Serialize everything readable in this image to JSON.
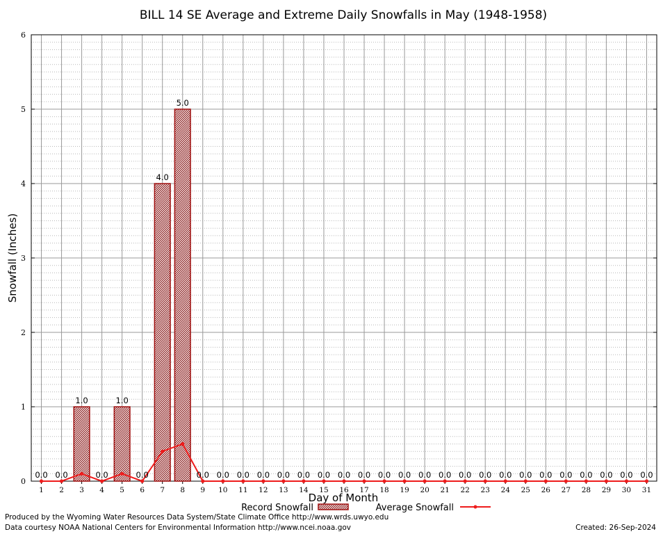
{
  "chart_data": {
    "type": "bar",
    "title": "BILL 14 SE Average and Extreme Daily Snowfalls in May (1948-1958)",
    "xlabel": "Day of Month",
    "ylabel": "Snowfall (Inches)",
    "ylim": [
      0,
      6
    ],
    "yticks": [
      "0",
      "1",
      "2",
      "3",
      "4",
      "5",
      "6"
    ],
    "categories": [
      "1",
      "2",
      "3",
      "4",
      "5",
      "6",
      "7",
      "8",
      "9",
      "10",
      "11",
      "12",
      "13",
      "14",
      "15",
      "16",
      "17",
      "18",
      "19",
      "20",
      "21",
      "22",
      "23",
      "24",
      "25",
      "26",
      "27",
      "28",
      "29",
      "30",
      "31"
    ],
    "series": [
      {
        "name": "Record Snowfall",
        "kind": "bar",
        "values": [
          0,
          0,
          1,
          0,
          1,
          0,
          4,
          5,
          0,
          0,
          0,
          0,
          0,
          0,
          0,
          0,
          0,
          0,
          0,
          0,
          0,
          0,
          0,
          0,
          0,
          0,
          0,
          0,
          0,
          0,
          0
        ],
        "labels": [
          "0.0",
          "0.0",
          "1.0",
          "0.0",
          "1.0",
          "0.0",
          "4.0",
          "5.0",
          "0.0",
          "0.0",
          "0.0",
          "0.0",
          "0.0",
          "0.0",
          "0.0",
          "0.0",
          "0.0",
          "0.0",
          "0.0",
          "0.0",
          "0.0",
          "0.0",
          "0.0",
          "0.0",
          "0.0",
          "0.0",
          "0.0",
          "0.0",
          "0.0",
          "0.0",
          "0.0"
        ],
        "color": "#a01010"
      },
      {
        "name": "Average Snowfall",
        "kind": "line",
        "values": [
          0,
          0,
          0.1,
          0,
          0.1,
          0,
          0.4,
          0.5,
          0,
          0,
          0,
          0,
          0,
          0,
          0,
          0,
          0,
          0,
          0,
          0,
          0,
          0,
          0,
          0,
          0,
          0,
          0,
          0,
          0,
          0,
          0
        ],
        "color": "#ee1c1c"
      }
    ],
    "grid": true,
    "legend": "bottom"
  },
  "footer": {
    "line1": "Produced by the Wyoming Water Resources Data System/State Climate Office http://www.wrds.uwyo.edu",
    "line2": "Data courtesy NOAA National Centers for Environmental Information http://www.ncei.noaa.gov",
    "created": "Created:  26-Sep-2024"
  }
}
